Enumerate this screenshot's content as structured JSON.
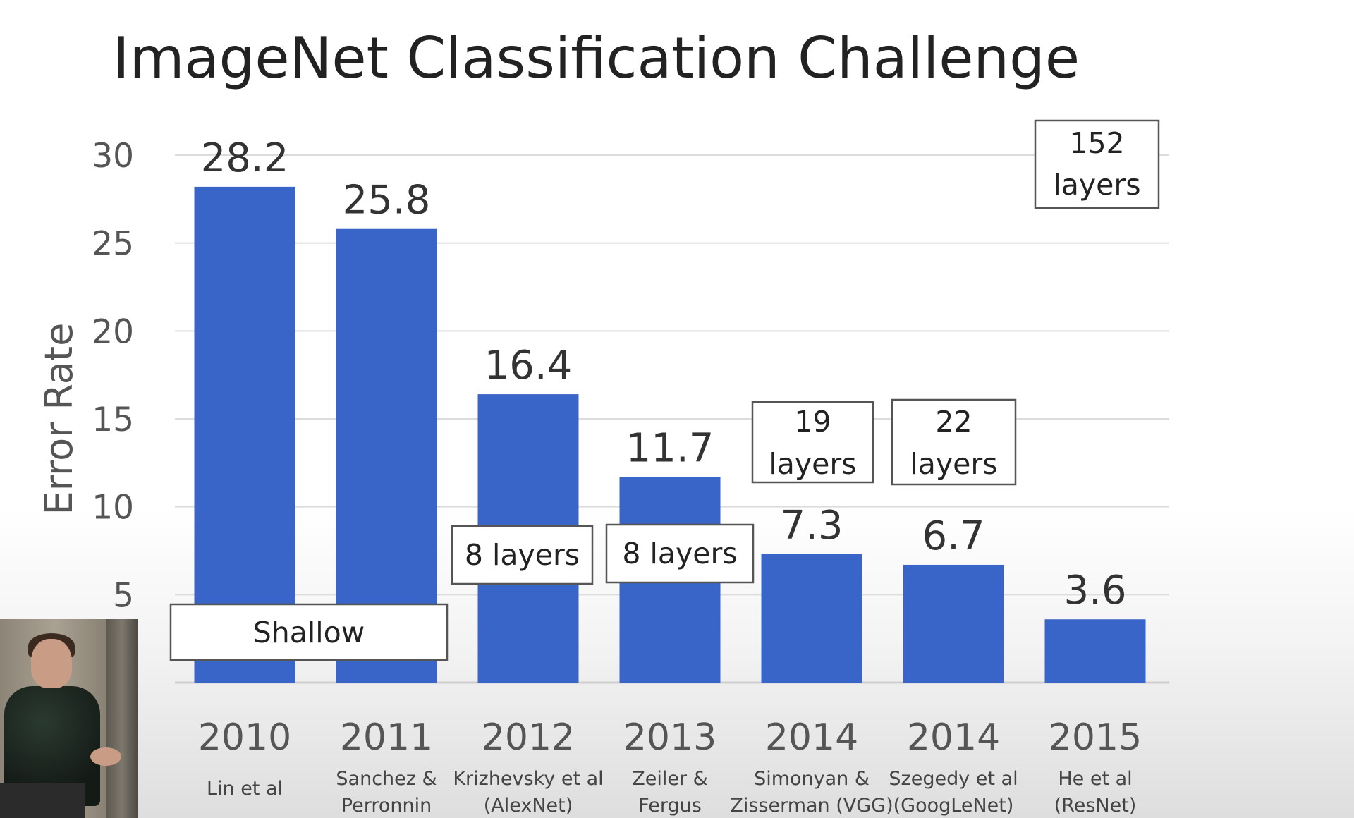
{
  "slide": {
    "title": "ImageNet Classification Challenge"
  },
  "chart_data": {
    "type": "bar",
    "title": "ImageNet Classification Challenge",
    "ylabel": "Error Rate",
    "xlabel": "",
    "ylim": [
      0,
      30
    ],
    "yticks": [
      5,
      10,
      15,
      20,
      25,
      30
    ],
    "grid": true,
    "bar_color": "#3a65c8",
    "categories": [
      "2010",
      "2011",
      "2012",
      "2013",
      "2014",
      "2014",
      "2015"
    ],
    "authors": [
      [
        "Lin et al"
      ],
      [
        "Sanchez &",
        "Perronnin"
      ],
      [
        "Krizhevsky et al",
        "(AlexNet)"
      ],
      [
        "Zeiler &",
        "Fergus"
      ],
      [
        "Simonyan &",
        "Zisserman (VGG)"
      ],
      [
        "Szegedy et al",
        "(GoogLeNet)"
      ],
      [
        "He et al",
        "(ResNet)"
      ]
    ],
    "values": [
      28.2,
      25.8,
      16.4,
      11.7,
      7.3,
      6.7,
      3.6
    ],
    "value_labels": [
      "28.2",
      "25.8",
      "16.4",
      "11.7",
      "7.3",
      "6.7",
      "3.6"
    ],
    "annotations": [
      {
        "lines": [
          "Shallow"
        ],
        "bars": [
          0,
          1
        ]
      },
      {
        "lines": [
          "8 layers"
        ],
        "bars": [
          2
        ]
      },
      {
        "lines": [
          "8 layers"
        ],
        "bars": [
          3
        ]
      },
      {
        "lines": [
          "19",
          "layers"
        ],
        "bars": [
          4
        ]
      },
      {
        "lines": [
          "22",
          "layers"
        ],
        "bars": [
          5
        ]
      },
      {
        "lines": [
          "152",
          "layers"
        ],
        "bars": [
          6
        ]
      }
    ]
  }
}
